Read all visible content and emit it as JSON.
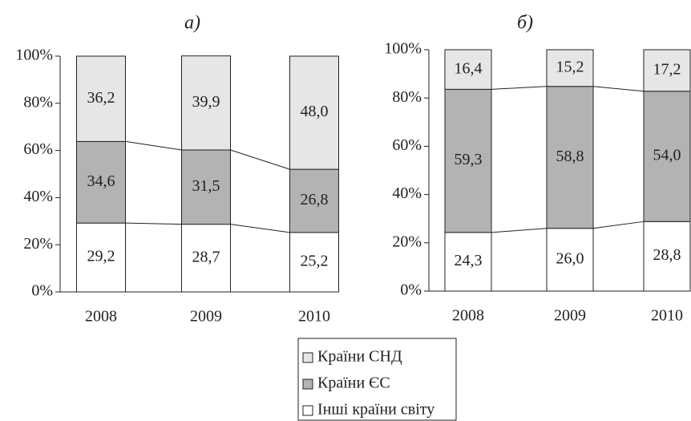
{
  "chart_data": [
    {
      "type": "bar",
      "stacked": true,
      "title": "а)",
      "categories": [
        "2008",
        "2009",
        "2010"
      ],
      "series": [
        {
          "name": "Інші країни світу",
          "color": "#ffffff",
          "values": [
            29.2,
            28.7,
            25.2
          ],
          "value_labels": [
            "29,2",
            "28,7",
            "25,2"
          ]
        },
        {
          "name": "Країни ЄС",
          "color": "#b3b3b3",
          "values": [
            34.6,
            31.5,
            26.8
          ],
          "value_labels": [
            "34,6",
            "31,5",
            "26,8"
          ]
        },
        {
          "name": "Країни СНД",
          "color": "#e6e6e6",
          "values": [
            36.2,
            39.9,
            48.0
          ],
          "value_labels": [
            "36,2",
            "39,9",
            "48,0"
          ]
        }
      ],
      "ylim": [
        0,
        100
      ],
      "yticks": [
        {
          "value": 0,
          "label": "0%"
        },
        {
          "value": 20,
          "label": "20%"
        },
        {
          "value": 40,
          "label": "40%"
        },
        {
          "value": 60,
          "label": "60%"
        },
        {
          "value": 80,
          "label": "80%"
        },
        {
          "value": 100,
          "label": "100%"
        }
      ]
    },
    {
      "type": "bar",
      "stacked": true,
      "title": "б)",
      "categories": [
        "2008",
        "2009",
        "2010"
      ],
      "series": [
        {
          "color": "#ffffff",
          "values": [
            24.3,
            26.0,
            28.8
          ],
          "value_labels": [
            "24,3",
            "26,0",
            "28,8"
          ]
        },
        {
          "color": "#b3b3b3",
          "values": [
            59.3,
            58.8,
            54.0
          ],
          "value_labels": [
            "59,3",
            "58,8",
            "54,0"
          ]
        },
        {
          "color": "#e6e6e6",
          "values": [
            16.4,
            15.2,
            17.2
          ],
          "value_labels": [
            "16,4",
            "15,2",
            "17,2"
          ]
        }
      ],
      "ylim": [
        0,
        100
      ],
      "yticks": [
        {
          "value": 0,
          "label": "0%"
        },
        {
          "value": 20,
          "label": "20%"
        },
        {
          "value": 40,
          "label": "40%"
        },
        {
          "value": 60,
          "label": "60%"
        },
        {
          "value": 80,
          "label": "80%"
        },
        {
          "value": 100,
          "label": "100%"
        }
      ]
    }
  ]
}
